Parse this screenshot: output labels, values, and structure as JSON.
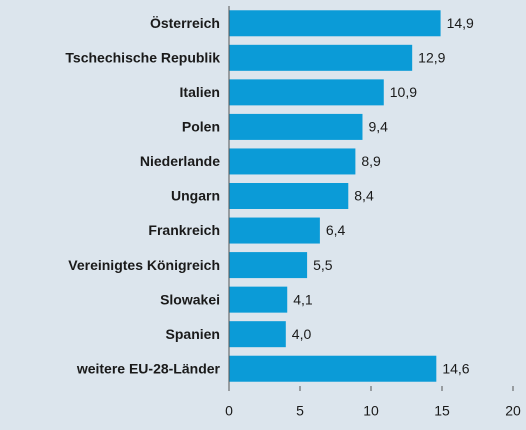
{
  "chart_data": {
    "type": "bar",
    "orientation": "horizontal",
    "categories": [
      "Österreich",
      "Tschechische Republik",
      "Italien",
      "Polen",
      "Niederlande",
      "Ungarn",
      "Frankreich",
      "Vereinigtes Königreich",
      "Slowakei",
      "Spanien",
      "weitere EU-28-Länder"
    ],
    "values": [
      14.9,
      12.9,
      10.9,
      9.4,
      8.9,
      8.4,
      6.4,
      5.5,
      4.1,
      4.0,
      14.6
    ],
    "value_labels": [
      "14,9",
      "12,9",
      "10,9",
      "9,4",
      "8,9",
      "8,4",
      "6,4",
      "5,5",
      "4,1",
      "4,0",
      "14,6"
    ],
    "color": "#0b9bd7",
    "xlim": [
      0,
      20
    ],
    "xticks": [
      0,
      5,
      10,
      15,
      20
    ],
    "grid": false
  }
}
